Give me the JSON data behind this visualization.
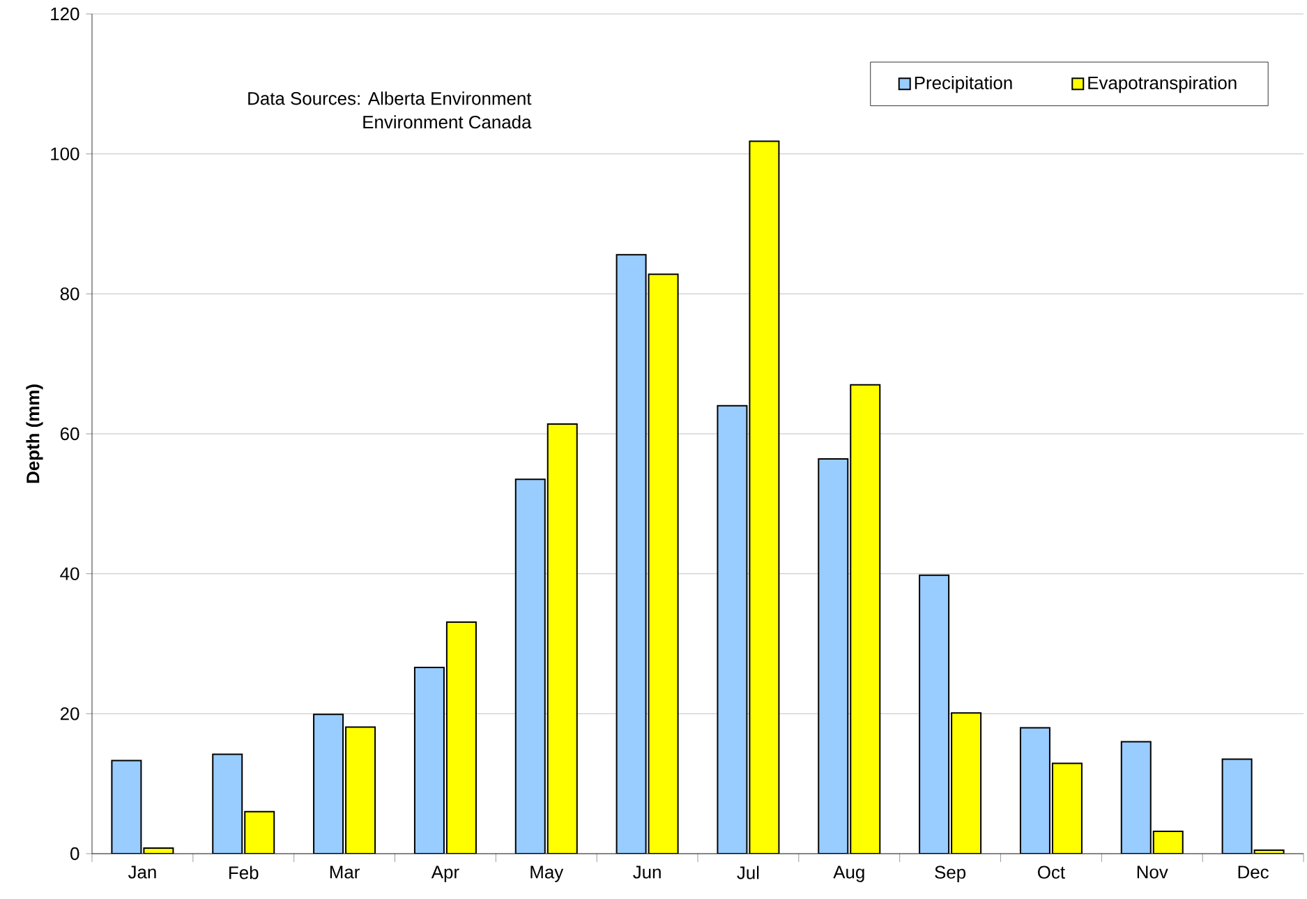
{
  "chart_data": {
    "type": "bar",
    "ylabel": "Depth (mm)",
    "categories": [
      "Jan",
      "Feb",
      "Mar",
      "Apr",
      "May",
      "Jun",
      "Jul",
      "Aug",
      "Sep",
      "Oct",
      "Nov",
      "Dec"
    ],
    "series": [
      {
        "name": "Precipitation",
        "color": "#99ccff",
        "values": [
          13.3,
          14.2,
          19.9,
          26.6,
          53.5,
          85.6,
          64.0,
          56.4,
          39.8,
          18.0,
          16.0,
          13.5
        ]
      },
      {
        "name": "Evapotranspiration",
        "color": "#ffff00",
        "values": [
          0.8,
          6.0,
          18.1,
          33.1,
          61.4,
          82.8,
          101.8,
          67.0,
          20.1,
          12.9,
          3.2,
          0.5
        ]
      }
    ],
    "ylim": [
      0,
      120
    ],
    "yticks": [
      0,
      20,
      40,
      60,
      80,
      100,
      120
    ],
    "grid": "y",
    "legend": "top right",
    "annotations": [
      "Data Sources: Alberta Environment",
      "Environment Canada"
    ]
  }
}
